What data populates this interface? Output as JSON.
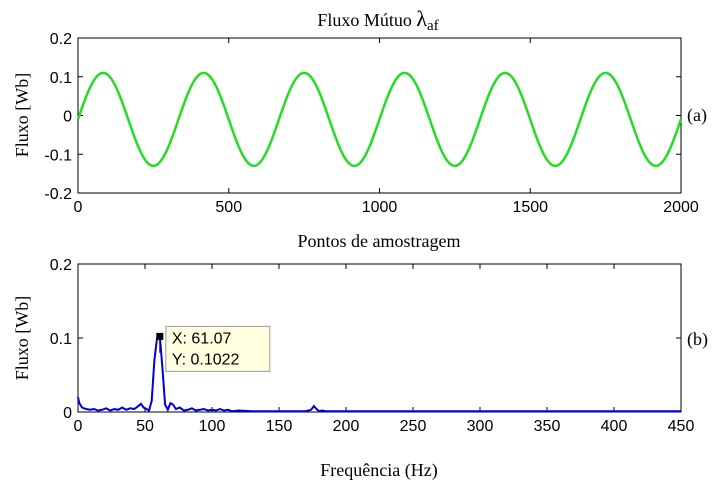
{
  "chart_data": [
    {
      "type": "line",
      "title_main": "Fluxo Mútuo ",
      "title_symbol": "λ",
      "title_subscript": "af",
      "xlabel": "Pontos de amostragem",
      "ylabel": "Fluxo [Wb]",
      "panel_label": "(a)",
      "xlim": [
        0,
        2000
      ],
      "ylim": [
        -0.2,
        0.2
      ],
      "xticks": [
        "0",
        "500",
        "1000",
        "1500",
        "2000"
      ],
      "yticks": [
        "-0.2",
        "-0.1",
        "0",
        "0.1",
        "0.2"
      ],
      "xtick_values": [
        0,
        500,
        1000,
        1500,
        2000
      ],
      "ytick_values": [
        -0.2,
        -0.1,
        0,
        0.1,
        0.2
      ],
      "series": [
        {
          "color": "#22dd22",
          "period": 333.3,
          "amplitude": 0.12,
          "offset": -0.01,
          "phase_zero_at": 0
        }
      ]
    },
    {
      "type": "line",
      "xlabel": "Frequência (Hz)",
      "ylabel": "Fluxo [Wb]",
      "panel_label": "(b)",
      "xlim": [
        0,
        450
      ],
      "ylim": [
        0,
        0.2
      ],
      "xticks": [
        "0",
        "50",
        "100",
        "150",
        "200",
        "250",
        "300",
        "350",
        "400",
        "450"
      ],
      "yticks": [
        "0",
        "0.1",
        "0.2"
      ],
      "xtick_values": [
        0,
        50,
        100,
        150,
        200,
        250,
        300,
        350,
        400,
        450
      ],
      "ytick_values": [
        0,
        0.1,
        0.2
      ],
      "series": [
        {
          "color": "#0000dd",
          "x": [
            0,
            1,
            3,
            6,
            9,
            12,
            15,
            18,
            21,
            24,
            27,
            30,
            33,
            36,
            39,
            42,
            45,
            47,
            49,
            51,
            53,
            55,
            57,
            59,
            61.07,
            63,
            65,
            67,
            69,
            71,
            73,
            76,
            79,
            82,
            85,
            88,
            91,
            94,
            97,
            100,
            103,
            106,
            109,
            112,
            115,
            120,
            130,
            140,
            150,
            160,
            170,
            174,
            176,
            178,
            180,
            182,
            185,
            190,
            200,
            250,
            300,
            350,
            400,
            450
          ],
          "y": [
            0.02,
            0.012,
            0.006,
            0.004,
            0.003,
            0.004,
            0.002,
            0.003,
            0.005,
            0.002,
            0.004,
            0.003,
            0.006,
            0.003,
            0.005,
            0.004,
            0.008,
            0.011,
            0.006,
            0.004,
            0.002,
            0.015,
            0.07,
            0.1,
            0.1022,
            0.06,
            0.01,
            0.003,
            0.012,
            0.01,
            0.004,
            0.006,
            0.002,
            0.003,
            0.005,
            0.002,
            0.003,
            0.004,
            0.002,
            0.003,
            0.002,
            0.004,
            0.002,
            0.003,
            0.001,
            0.002,
            0.001,
            0.001,
            0.001,
            0.001,
            0.001,
            0.003,
            0.008,
            0.004,
            0.001,
            0.002,
            0.001,
            0.001,
            0.001,
            0.001,
            0.001,
            0.001,
            0.001,
            0.001
          ]
        }
      ],
      "datatip": {
        "x_text": "X: 61.07",
        "y_text": "Y: 0.1022",
        "x": 61.07,
        "y": 0.1022
      }
    }
  ]
}
